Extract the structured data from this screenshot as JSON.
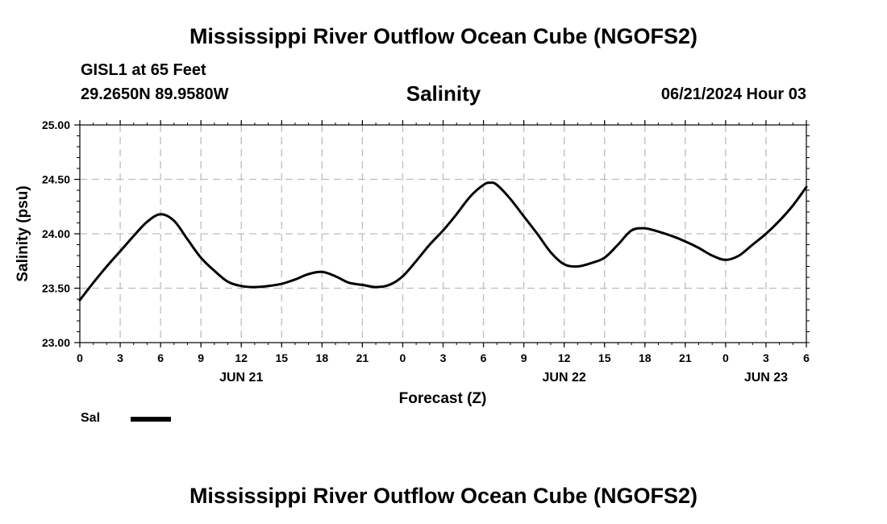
{
  "header": {
    "title": "Mississippi River Outflow Ocean Cube (NGOFS2)",
    "station": "GISL1 at 65 Feet",
    "coords": "29.2650N  89.9580W",
    "run_time": "06/21/2024 Hour 03",
    "footer_title": "Mississippi River Outflow Ocean Cube (NGOFS2)"
  },
  "legend": {
    "label": "Sal"
  },
  "chart_data": {
    "type": "line",
    "title": "Salinity",
    "xlabel": "Forecast (Z)",
    "ylabel": "Salinity (psu)",
    "xlim": [
      0,
      54
    ],
    "ylim": [
      23.0,
      25.0
    ],
    "yticks": [
      23.0,
      23.5,
      24.0,
      24.5,
      25.0
    ],
    "ytick_labels": [
      "23.00",
      "23.50",
      "24.00",
      "24.50",
      "25.00"
    ],
    "xticks": [
      0,
      3,
      6,
      9,
      12,
      15,
      18,
      21,
      24,
      27,
      30,
      33,
      36,
      39,
      42,
      45,
      48,
      51,
      54
    ],
    "xtick_labels": [
      "0",
      "3",
      "6",
      "9",
      "12",
      "15",
      "18",
      "21",
      "0",
      "3",
      "6",
      "9",
      "12",
      "15",
      "18",
      "21",
      "0",
      "3",
      "6"
    ],
    "date_labels": [
      {
        "x": 12,
        "label": "JUN 21"
      },
      {
        "x": 36,
        "label": "JUN 22"
      },
      {
        "x": 51,
        "label": "JUN 23"
      }
    ],
    "grid": true,
    "series": [
      {
        "name": "Sal",
        "color": "#000000",
        "x": [
          0,
          1,
          2,
          3,
          4,
          5,
          6,
          7,
          8,
          9,
          10,
          11,
          12,
          13,
          14,
          15,
          16,
          17,
          18,
          19,
          20,
          21,
          22,
          23,
          24,
          25,
          26,
          27,
          28,
          29,
          30,
          30.5,
          31,
          32,
          33,
          34,
          35,
          36,
          37,
          38,
          39,
          40,
          41,
          42,
          43,
          44,
          45,
          46,
          47,
          48,
          49,
          50,
          51,
          52,
          53,
          54
        ],
        "values": [
          23.39,
          23.55,
          23.7,
          23.84,
          23.98,
          24.11,
          24.18,
          24.12,
          23.95,
          23.78,
          23.66,
          23.56,
          23.52,
          23.51,
          23.52,
          23.54,
          23.58,
          23.63,
          23.65,
          23.61,
          23.55,
          23.53,
          23.51,
          23.53,
          23.61,
          23.75,
          23.9,
          24.03,
          24.18,
          24.34,
          24.45,
          24.47,
          24.45,
          24.32,
          24.16,
          24.0,
          23.83,
          23.72,
          23.7,
          23.73,
          23.78,
          23.9,
          24.03,
          24.05,
          24.02,
          23.98,
          23.93,
          23.87,
          23.8,
          23.76,
          23.8,
          23.9,
          24.0,
          24.12,
          24.26,
          24.43
        ]
      }
    ]
  }
}
